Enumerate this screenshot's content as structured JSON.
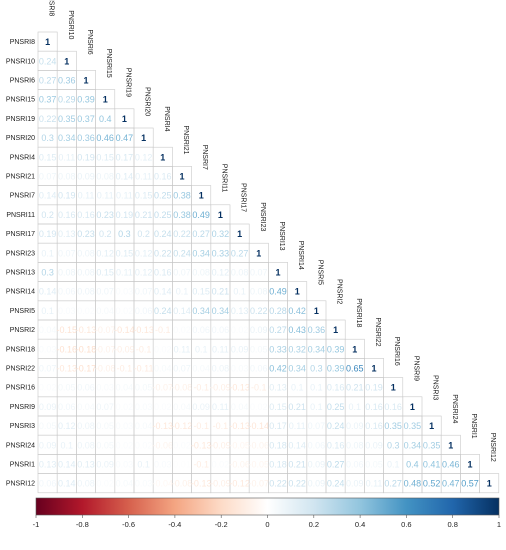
{
  "chart_data": {
    "type": "heatmap",
    "variables": [
      "PNSRI8",
      "PNSRI10",
      "PNSRI6",
      "PNSRI15",
      "PNSRI19",
      "PNSRI20",
      "PNSRI4",
      "PNSRI21",
      "PNSRI7",
      "PNSRI11",
      "PNSRI17",
      "PNSRI23",
      "PNSRI13",
      "PNSRI14",
      "PNSRI5",
      "PNSRI2",
      "PNSRI18",
      "PNSRI22",
      "PNSRI16",
      "PNSRI9",
      "PNSRI3",
      "PNSRI24",
      "PNSRI1",
      "PNSRI12"
    ],
    "matrix_lower": [
      [
        1
      ],
      [
        0.24,
        1
      ],
      [
        0.27,
        0.36,
        1
      ],
      [
        0.37,
        0.29,
        0.39,
        1
      ],
      [
        0.22,
        0.35,
        0.37,
        0.4,
        1
      ],
      [
        0.3,
        0.34,
        0.36,
        0.46,
        0.47,
        1
      ],
      [
        0.15,
        0.11,
        0.19,
        0.15,
        0.17,
        0.12,
        1
      ],
      [
        0.07,
        0.08,
        0.09,
        0.08,
        0.14,
        0.11,
        0.16,
        1
      ],
      [
        0.14,
        0.19,
        0.11,
        0.11,
        0.11,
        0.15,
        0.25,
        0.38,
        1
      ],
      [
        0.2,
        0.16,
        0.16,
        0.23,
        0.19,
        0.21,
        0.25,
        0.38,
        0.49,
        1
      ],
      [
        0.19,
        0.13,
        0.23,
        0.2,
        0.3,
        0.2,
        0.24,
        0.22,
        0.27,
        0.32,
        1
      ],
      [
        0.1,
        0.07,
        0.08,
        0.12,
        0.15,
        0.12,
        0.22,
        0.24,
        0.34,
        0.33,
        0.27,
        1
      ],
      [
        0.3,
        0.08,
        0.08,
        0.15,
        0.11,
        0.12,
        0.16,
        0.07,
        0.08,
        0.12,
        0.08,
        0.07,
        1
      ],
      [
        0.14,
        0.06,
        0.08,
        0.07,
        0.03,
        0.07,
        0.14,
        0.1,
        0.15,
        0.21,
        0.1,
        0.08,
        0.49,
        1
      ],
      [
        0.1,
        0.03,
        0.02,
        0.04,
        0.02,
        0.06,
        0.24,
        0.14,
        0.34,
        0.34,
        0.13,
        0.22,
        0.28,
        0.42,
        1
      ],
      [
        0.04,
        -0.15,
        -0.13,
        -0.07,
        -0.14,
        -0.13,
        -0.1,
        0.02,
        0.06,
        0.06,
        0.02,
        0.09,
        0.27,
        0.43,
        0.36,
        1
      ],
      [
        0.03,
        -0.16,
        -0.18,
        -0.07,
        -0.09,
        -0.1,
        0.02,
        0.11,
        0.1,
        0.11,
        0.09,
        0.05,
        0.33,
        0.32,
        0.34,
        0.39,
        1
      ],
      [
        0.07,
        -0.13,
        -0.17,
        -0.08,
        -0.1,
        -0.11,
        0.04,
        0.07,
        0.04,
        0.08,
        0.03,
        0.06,
        0.42,
        0.34,
        0.3,
        0.39,
        0.65,
        1
      ],
      [
        0.02,
        0.05,
        0.06,
        0.03,
        0.04,
        0.05,
        -0.07,
        -0.08,
        -0.1,
        -0.09,
        -0.13,
        -0.1,
        0.13,
        0.1,
        0.1,
        0.16,
        0.21,
        0.19,
        1
      ],
      [
        0.09,
        0.06,
        0.04,
        0.07,
        0.02,
        0.03,
        0.02,
        0.04,
        0.09,
        0.11,
        0.04,
        0.02,
        0.15,
        0.21,
        0.1,
        0.25,
        0.1,
        0.16,
        0.16,
        1
      ],
      [
        0.05,
        0.12,
        0.08,
        0.05,
        0.03,
        0.04,
        -0.13,
        -0.12,
        -0.1,
        -0.1,
        -0.13,
        -0.14,
        0.17,
        0.11,
        0.07,
        0.24,
        0.09,
        0.16,
        0.35,
        0.35,
        1
      ],
      [
        0.09,
        0.1,
        0.08,
        0.05,
        0.02,
        0.02,
        -0.06,
        0.02,
        -0.13,
        -0.09,
        -0.05,
        -0.06,
        0.18,
        0.14,
        0.06,
        0.16,
        0.08,
        0.09,
        0.3,
        0.34,
        0.35,
        1
      ],
      [
        0.13,
        0.14,
        0.13,
        0.09,
        0.03,
        0.1,
        0.03,
        0.01,
        -0.1,
        0.02,
        -0.06,
        -0.05,
        0.18,
        0.21,
        0.09,
        0.27,
        0.06,
        0.05,
        0.1,
        0.4,
        0.41,
        0.46,
        1
      ],
      [
        0.06,
        0.14,
        0.08,
        0.02,
        0.04,
        0.03,
        -0.04,
        -0.08,
        -0.13,
        -0.09,
        -0.12,
        -0.07,
        0.22,
        0.22,
        0.09,
        0.24,
        0.09,
        0.11,
        0.27,
        0.48,
        0.52,
        0.47,
        0.57,
        1
      ]
    ],
    "colorbar": {
      "ticks": [
        "-1",
        "-0.8",
        "-0.6",
        "-0.4",
        "-0.2",
        "0",
        "0.2",
        "0.4",
        "0.6",
        "0.8",
        "1"
      ],
      "range": [
        -1,
        1
      ],
      "orientation": "horizontal",
      "placement": "bottom"
    },
    "colors": {
      "negative_end": "#67001F",
      "positive_end": "#053061",
      "midpoint": "#FFFFFF"
    },
    "layout": "lower-triangle"
  }
}
